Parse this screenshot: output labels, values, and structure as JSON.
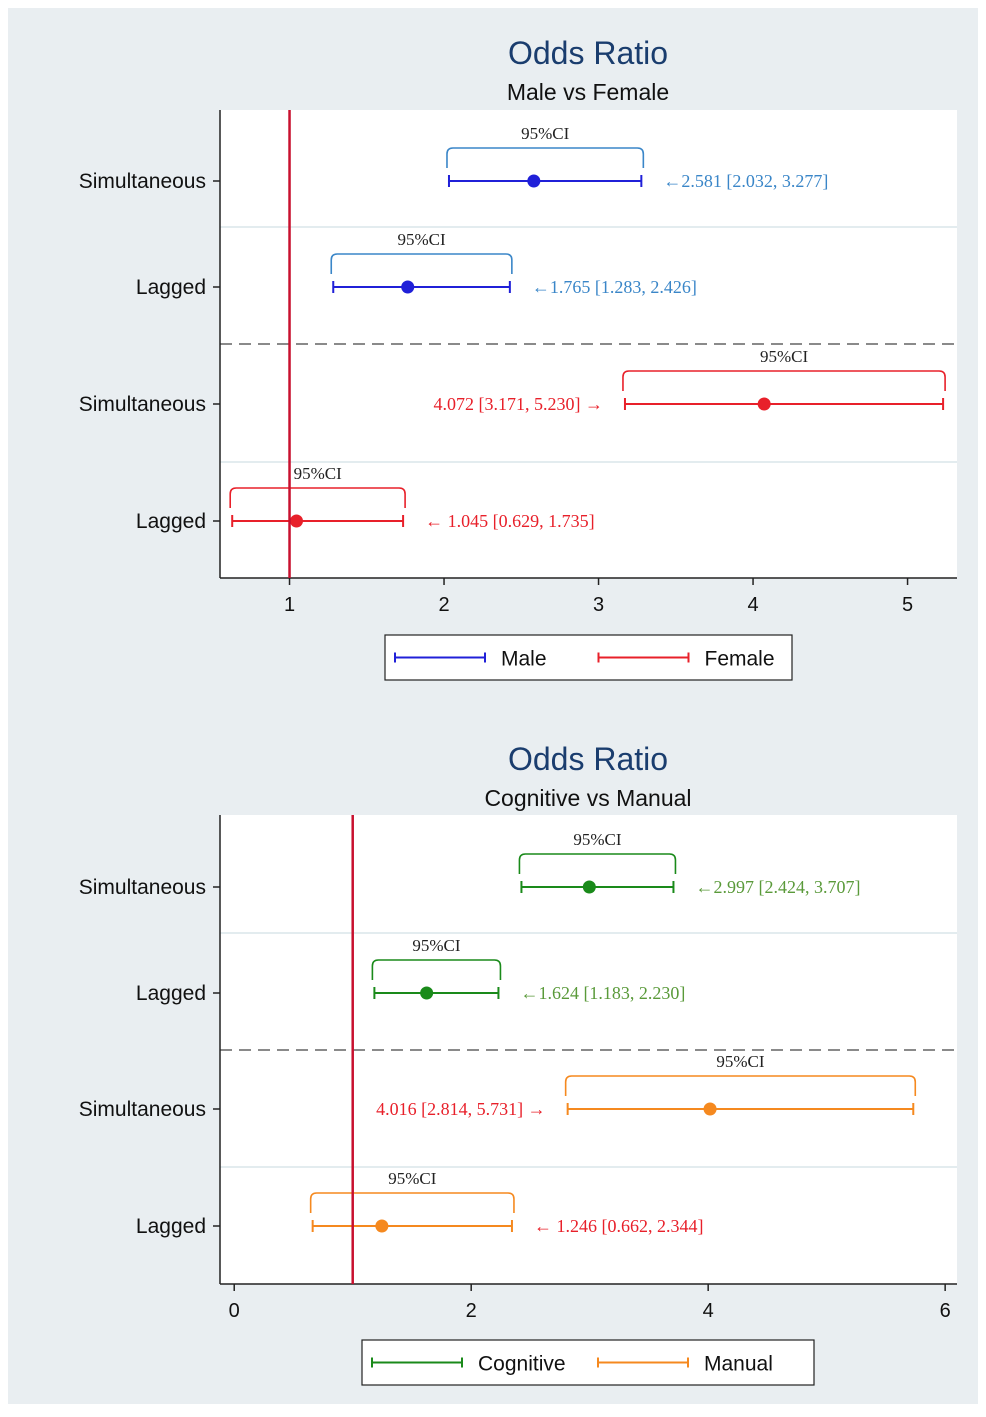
{
  "chart_data": [
    {
      "type": "forest",
      "title": "Odds Ratio",
      "subtitle": "Male vs Female",
      "xlim": [
        0.55,
        5.32
      ],
      "xticks": [
        1,
        2,
        3,
        4,
        5
      ],
      "xtick_labels": [
        "1",
        "2",
        "3",
        "4",
        "5"
      ],
      "reference_line_x": 1,
      "categories": [
        "Simultaneous",
        "Lagged",
        "Simultaneous",
        "Lagged"
      ],
      "legend_position": "bottom",
      "series": [
        {
          "name": "Male",
          "color": "#2020d8",
          "label_color": "#3a86c8"
        },
        {
          "name": "Female",
          "color": "#e8202a",
          "label_color": "#e8202a"
        }
      ],
      "rows": [
        {
          "category": "Simultaneous",
          "series": 0,
          "estimate": 2.581,
          "lower": 2.032,
          "upper": 3.277,
          "label": "←2.581 [2.032, 3.277]",
          "label_side": "right",
          "ci_text": "95%CI"
        },
        {
          "category": "Lagged",
          "series": 0,
          "estimate": 1.765,
          "lower": 1.283,
          "upper": 2.426,
          "label": "←1.765 [1.283, 2.426]",
          "label_side": "right",
          "ci_text": "95%CI"
        },
        {
          "category": "Simultaneous",
          "series": 1,
          "estimate": 4.072,
          "lower": 3.171,
          "upper": 5.23,
          "label": "4.072 [3.171, 5.230] →",
          "label_side": "left",
          "ci_text": "95%CI"
        },
        {
          "category": "Lagged",
          "series": 1,
          "estimate": 1.045,
          "lower": 0.629,
          "upper": 1.735,
          "label": "← 1.045 [0.629, 1.735]",
          "label_side": "right",
          "ci_text": "95%CI"
        }
      ]
    },
    {
      "type": "forest",
      "title": "Odds Ratio",
      "subtitle": "Cognitive vs Manual",
      "xlim": [
        -0.12,
        6.1
      ],
      "xticks": [
        0,
        2,
        4,
        6
      ],
      "xtick_labels": [
        "0",
        "2",
        "4",
        "6"
      ],
      "reference_line_x": 1,
      "categories": [
        "Simultaneous",
        "Lagged",
        "Simultaneous",
        "Lagged"
      ],
      "legend_position": "bottom",
      "series": [
        {
          "name": "Cognitive",
          "color": "#1a8a1a",
          "label_color": "#5a9a3a"
        },
        {
          "name": "Manual",
          "color": "#f5891f",
          "label_color": "#e8202a"
        }
      ],
      "rows": [
        {
          "category": "Simultaneous",
          "series": 0,
          "estimate": 2.997,
          "lower": 2.424,
          "upper": 3.707,
          "label": "←2.997 [2.424, 3.707]",
          "label_side": "right",
          "ci_text": "95%CI"
        },
        {
          "category": "Lagged",
          "series": 0,
          "estimate": 1.624,
          "lower": 1.183,
          "upper": 2.23,
          "label": "←1.624 [1.183, 2.230]",
          "label_side": "right",
          "ci_text": "95%CI"
        },
        {
          "category": "Simultaneous",
          "series": 1,
          "estimate": 4.016,
          "lower": 2.814,
          "upper": 5.731,
          "label": "4.016 [2.814, 5.731] →",
          "label_side": "left",
          "ci_text": "95%CI"
        },
        {
          "category": "Lagged",
          "series": 1,
          "estimate": 1.246,
          "lower": 0.662,
          "upper": 2.344,
          "label": "← 1.246 [0.662, 2.344]",
          "label_side": "right",
          "ci_text": "95%CI"
        }
      ]
    }
  ]
}
